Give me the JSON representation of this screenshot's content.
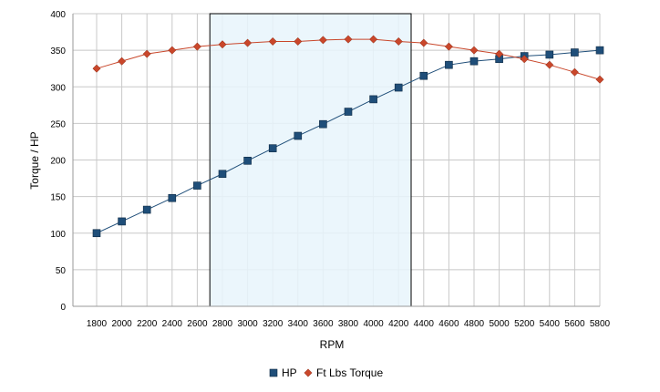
{
  "chart_data": {
    "type": "line",
    "title": "",
    "xlabel": "RPM",
    "ylabel": "Torque / HP",
    "categories": [
      "1800",
      "2000",
      "2200",
      "2400",
      "2600",
      "2800",
      "3000",
      "3200",
      "3400",
      "3600",
      "3800",
      "4000",
      "4200",
      "4400",
      "4600",
      "4800",
      "5000",
      "5200",
      "5400",
      "5600",
      "5800"
    ],
    "ylim": [
      0,
      400
    ],
    "yticks": [
      0,
      50,
      100,
      150,
      200,
      250,
      300,
      350,
      400
    ],
    "grid": true,
    "legend_position": "bottom",
    "highlight_range": {
      "from": "2800",
      "to": "4200",
      "color": "#e8f4fc"
    },
    "series": [
      {
        "name": "HP",
        "color": "#1f4e79",
        "marker": "square",
        "values": [
          100,
          116,
          132,
          148,
          165,
          181,
          199,
          216,
          233,
          249,
          266,
          283,
          299,
          315,
          330,
          335,
          338,
          342,
          344,
          347,
          350
        ]
      },
      {
        "name": "Ft Lbs Torque",
        "color": "#c9472b",
        "marker": "diamond",
        "values": [
          325,
          335,
          345,
          350,
          355,
          358,
          360,
          362,
          362,
          364,
          365,
          365,
          362,
          360,
          355,
          350,
          345,
          338,
          330,
          320,
          310
        ]
      }
    ]
  }
}
